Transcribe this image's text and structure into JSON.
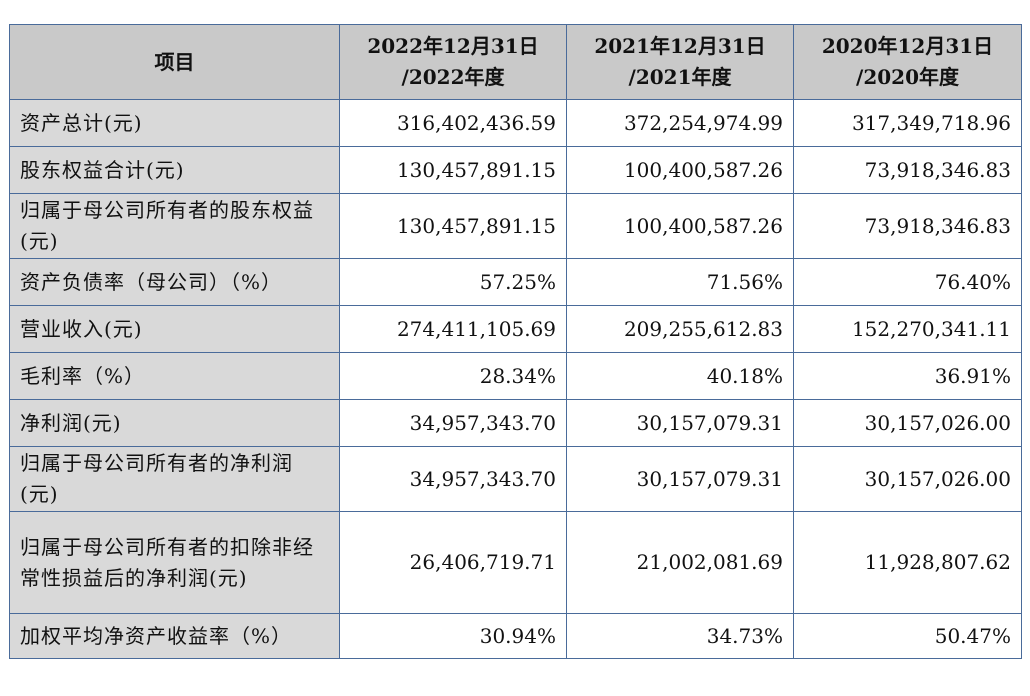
{
  "table": {
    "headers": [
      {
        "line1": "项目",
        "line2": ""
      },
      {
        "line1": "2022年12月31日",
        "line2": "/2022年度"
      },
      {
        "line1": "2021年12月31日",
        "line2": "/2021年度"
      },
      {
        "line1": "2020年12月31日",
        "line2": "/2020年度"
      }
    ],
    "rows": [
      {
        "label": "资产总计(元)",
        "v2022": "316,402,436.59",
        "v2021": "372,254,974.99",
        "v2020": "317,349,718.96"
      },
      {
        "label": "股东权益合计(元)",
        "v2022": "130,457,891.15",
        "v2021": "100,400,587.26",
        "v2020": "73,918,346.83"
      },
      {
        "label": "归属于母公司所有者的股东权益(元)",
        "v2022": "130,457,891.15",
        "v2021": "100,400,587.26",
        "v2020": "73,918,346.83"
      },
      {
        "label": "资产负债率（母公司）（%）",
        "v2022": "57.25%",
        "v2021": "71.56%",
        "v2020": "76.40%"
      },
      {
        "label": "营业收入(元)",
        "v2022": "274,411,105.69",
        "v2021": "209,255,612.83",
        "v2020": "152,270,341.11"
      },
      {
        "label": "毛利率（%）",
        "v2022": "28.34%",
        "v2021": "40.18%",
        "v2020": "36.91%"
      },
      {
        "label": "净利润(元)",
        "v2022": "34,957,343.70",
        "v2021": "30,157,079.31",
        "v2020": "30,157,026.00"
      },
      {
        "label": "归属于母公司所有者的净利润(元)",
        "v2022": "34,957,343.70",
        "v2021": "30,157,079.31",
        "v2020": "30,157,026.00"
      },
      {
        "label": "归属于母公司所有者的扣除非经常性损益后的净利润(元)",
        "v2022": "26,406,719.71",
        "v2021": "21,002,081.69",
        "v2020": "11,928,807.62"
      },
      {
        "label": "加权平均净资产收益率（%）",
        "v2022": "30.94%",
        "v2021": "34.73%",
        "v2020": "50.47%"
      }
    ]
  }
}
